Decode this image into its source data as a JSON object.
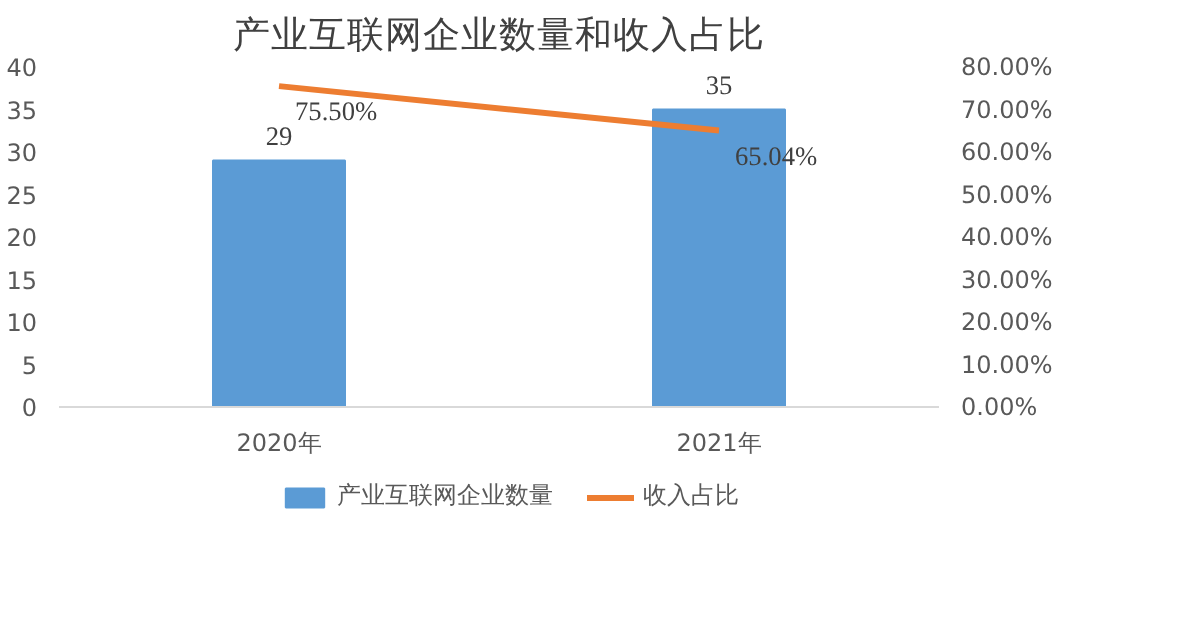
{
  "chart_data": {
    "type": "bar",
    "title": "产业互联网企业数量和收入占比",
    "categories": [
      "2020年",
      "2021年"
    ],
    "series": [
      {
        "name": "产业互联网企业数量",
        "color": "#5b9bd5",
        "values": [
          29,
          35
        ],
        "value_labels": [
          "29",
          "35"
        ]
      },
      {
        "name": "收入占比",
        "type": "line",
        "axis": "y2",
        "color": "#ed7d31",
        "values": [
          75.5,
          65.04
        ],
        "value_labels": [
          "75.50%",
          "65.04%"
        ]
      }
    ],
    "ylim": [
      0,
      40
    ],
    "yticks": [
      0,
      5,
      10,
      15,
      20,
      25,
      30,
      35,
      40
    ],
    "y2lim": [
      0,
      80
    ],
    "y2ticks": [
      {
        "value": 0,
        "label": "0.00%"
      },
      {
        "value": 10,
        "label": "10.00%"
      },
      {
        "value": 20,
        "label": "20.00%"
      },
      {
        "value": 30,
        "label": "30.00%"
      },
      {
        "value": 40,
        "label": "40.00%"
      },
      {
        "value": 50,
        "label": "50.00%"
      },
      {
        "value": 60,
        "label": "60.00%"
      },
      {
        "value": 70,
        "label": "70.00%"
      },
      {
        "value": 80,
        "label": "80.00%"
      }
    ],
    "legend": "bottom",
    "grid": false,
    "marker": "none"
  }
}
